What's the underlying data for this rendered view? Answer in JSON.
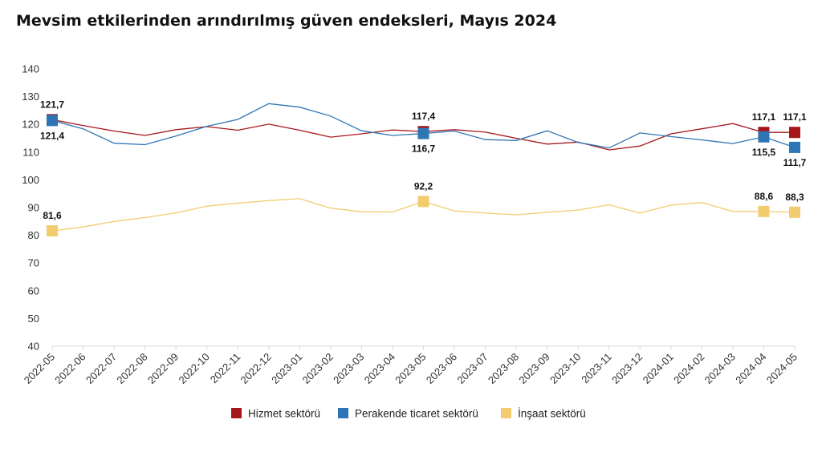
{
  "chart_data": {
    "type": "line",
    "title": "Mevsim etkilerinden arındırılmış güven endeksleri, Mayıs 2024",
    "xlabel": "",
    "ylabel": "",
    "ylim": [
      40,
      140
    ],
    "yticks": [
      40,
      50,
      60,
      70,
      80,
      90,
      100,
      110,
      120,
      130,
      140
    ],
    "grid": false,
    "legend_position": "bottom",
    "categories": [
      "2022-05",
      "2022-06",
      "2022-07",
      "2022-08",
      "2022-09",
      "2022-10",
      "2022-11",
      "2022-12",
      "2023-01",
      "2023-02",
      "2023-03",
      "2023-04",
      "2023-05",
      "2023-06",
      "2023-07",
      "2023-08",
      "2023-09",
      "2023-10",
      "2023-11",
      "2023-12",
      "2024-01",
      "2024-02",
      "2024-03",
      "2024-04",
      "2024-05"
    ],
    "series": [
      {
        "name": "Hizmet sektörü",
        "color": "#A6171C",
        "values": [
          121.7,
          119.6,
          117.6,
          116.0,
          118.1,
          119.2,
          117.9,
          120.1,
          117.9,
          115.4,
          116.6,
          118.0,
          117.4,
          118.1,
          117.2,
          115.0,
          112.9,
          113.6,
          110.8,
          112.2,
          116.6,
          118.4,
          120.3,
          117.1,
          117.1
        ],
        "labels": {
          "0": "121,7",
          "12": "117,4",
          "23": "117,1",
          "24": "117,1"
        },
        "label_pos": "above"
      },
      {
        "name": "Perakende ticaret sektörü",
        "color": "#2E75B6",
        "values": [
          121.4,
          118.4,
          113.2,
          112.7,
          115.8,
          119.3,
          121.8,
          127.5,
          126.2,
          123.0,
          117.7,
          116.0,
          116.7,
          117.6,
          114.5,
          114.2,
          117.7,
          113.5,
          111.5,
          116.9,
          115.6,
          114.4,
          113.1,
          115.5,
          111.7
        ],
        "labels": {
          "0": "121,4",
          "12": "116,7",
          "23": "115,5",
          "24": "111,7"
        },
        "label_pos": "below"
      },
      {
        "name": "İnşaat sektörü",
        "color": "#F2CC6E",
        "values": [
          81.6,
          83.0,
          85.0,
          86.4,
          88.1,
          90.5,
          91.6,
          92.5,
          93.2,
          89.8,
          88.5,
          88.4,
          92.2,
          88.8,
          88.0,
          87.4,
          88.3,
          89.1,
          91.0,
          88.0,
          90.9,
          91.8,
          88.6,
          88.6,
          88.3
        ],
        "labels": {
          "0": "81,6",
          "12": "92,2",
          "23": "88,6",
          "24": "88,3"
        },
        "label_pos": "above"
      }
    ]
  }
}
